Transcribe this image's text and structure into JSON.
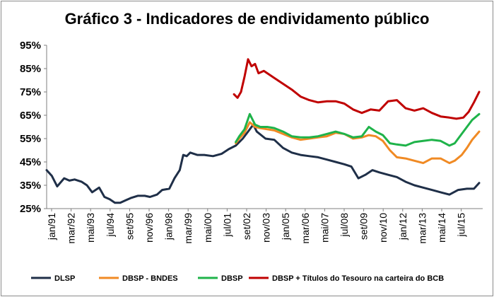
{
  "chart_data": {
    "type": "line",
    "title": "Gráfico 3 - Indicadores de endividamento público",
    "xlabel": "",
    "ylabel": "",
    "ylim": [
      25,
      95
    ],
    "y_ticks": [
      "95%",
      "85%",
      "75%",
      "65%",
      "55%",
      "45%",
      "35%",
      "25%"
    ],
    "x_ticks": [
      "jan/91",
      "mar/92",
      "mai/93",
      "jul/94",
      "set/95",
      "nov/96",
      "jan/98",
      "mar/99",
      "mai/00",
      "jul/01",
      "set/02",
      "nov/03",
      "jan/05",
      "mar/06",
      "mai/07",
      "jul/08",
      "set/09",
      "nov/10",
      "jan/12",
      "mar/13",
      "mai/14",
      "jul/15"
    ],
    "series": [
      {
        "name": "DLSP",
        "color": "#1f2f48",
        "x": [
          1991.0,
          1991.3,
          1991.6,
          1992.0,
          1992.3,
          1992.6,
          1993.0,
          1993.3,
          1993.6,
          1994.0,
          1994.3,
          1994.6,
          1994.9,
          1995.2,
          1995.5,
          1995.8,
          1996.2,
          1996.6,
          1996.9,
          1997.3,
          1997.6,
          1998.0,
          1998.3,
          1998.6,
          1998.8,
          1999.0,
          1999.2,
          1999.6,
          2000.0,
          2000.5,
          2001.0,
          2001.4,
          2001.8,
          2002.2,
          2002.5,
          2002.8,
          2003.0,
          2003.5,
          2004.0,
          2004.5,
          2005.0,
          2005.5,
          2006.0,
          2006.5,
          2007.0,
          2007.5,
          2008.0,
          2008.4,
          2008.8,
          2009.2,
          2009.6,
          2010.0,
          2010.5,
          2011.0,
          2011.5,
          2012.0,
          2012.5,
          2013.0,
          2013.5,
          2014.0,
          2014.5,
          2015.0,
          2015.4,
          2015.7
        ],
        "values": [
          41.5,
          39.0,
          34.5,
          38.0,
          37.0,
          37.5,
          36.5,
          35.0,
          32.0,
          34.0,
          30.0,
          29.0,
          27.5,
          27.5,
          28.5,
          29.5,
          30.5,
          30.5,
          30.0,
          31.0,
          33.0,
          33.5,
          38.0,
          41.5,
          48.0,
          47.5,
          49.0,
          48.0,
          48.0,
          47.5,
          48.5,
          50.5,
          52.0,
          55.0,
          58.0,
          61.0,
          58.0,
          55.0,
          54.5,
          51.0,
          49.0,
          48.0,
          47.5,
          47.0,
          46.0,
          45.0,
          44.0,
          43.0,
          38.0,
          39.5,
          41.5,
          40.5,
          39.5,
          38.5,
          36.5,
          35.0,
          34.0,
          33.0,
          32.0,
          31.0,
          33.0,
          33.5,
          33.5,
          36.0
        ]
      },
      {
        "name": "DBSP - BNDES",
        "color": "#f08a24",
        "x": [
          2001.8,
          2002.0,
          2002.3,
          2002.6,
          2002.9,
          2003.2,
          2003.6,
          2004.0,
          2004.5,
          2005.0,
          2005.5,
          2006.0,
          2006.5,
          2007.0,
          2007.5,
          2008.0,
          2008.5,
          2009.0,
          2009.4,
          2009.8,
          2010.2,
          2010.6,
          2011.0,
          2011.5,
          2012.0,
          2012.5,
          2013.0,
          2013.5,
          2014.0,
          2014.3,
          2014.7,
          2015.0,
          2015.3,
          2015.7
        ],
        "values": [
          53.0,
          55.0,
          57.5,
          62.0,
          60.0,
          59.5,
          59.0,
          58.5,
          57.0,
          55.5,
          54.5,
          55.0,
          55.5,
          56.0,
          57.5,
          57.0,
          55.0,
          55.5,
          56.5,
          56.0,
          54.0,
          50.0,
          47.0,
          46.5,
          45.5,
          44.5,
          46.5,
          46.5,
          44.5,
          45.5,
          48.0,
          51.0,
          54.5,
          58.0
        ]
      },
      {
        "name": "DBSP",
        "color": "#1fb34a",
        "x": [
          2001.8,
          2002.0,
          2002.3,
          2002.6,
          2002.9,
          2003.2,
          2003.6,
          2004.0,
          2004.5,
          2005.0,
          2005.5,
          2006.0,
          2006.5,
          2007.0,
          2007.5,
          2008.0,
          2008.5,
          2009.0,
          2009.4,
          2009.8,
          2010.2,
          2010.6,
          2011.0,
          2011.5,
          2012.0,
          2012.5,
          2013.0,
          2013.5,
          2014.0,
          2014.3,
          2014.7,
          2015.0,
          2015.3,
          2015.7
        ],
        "values": [
          53.5,
          56.0,
          59.0,
          65.5,
          61.0,
          60.0,
          60.0,
          59.5,
          58.0,
          56.0,
          55.5,
          55.5,
          56.0,
          57.0,
          58.0,
          57.0,
          55.5,
          56.0,
          60.0,
          58.0,
          56.5,
          53.0,
          52.5,
          52.0,
          53.5,
          54.0,
          54.5,
          54.0,
          52.0,
          53.0,
          57.0,
          60.0,
          63.0,
          65.5
        ]
      },
      {
        "name": "DBSP + Títulos do Tesouro na carteira do BCB",
        "color": "#c00000",
        "x": [
          2001.7,
          2001.9,
          2002.1,
          2002.3,
          2002.5,
          2002.7,
          2002.9,
          2003.1,
          2003.4,
          2003.7,
          2004.0,
          2004.5,
          2005.0,
          2005.5,
          2006.0,
          2006.5,
          2007.0,
          2007.5,
          2008.0,
          2008.5,
          2009.0,
          2009.5,
          2010.0,
          2010.5,
          2011.0,
          2011.5,
          2012.0,
          2012.5,
          2013.0,
          2013.5,
          2014.0,
          2014.4,
          2014.8,
          2015.1,
          2015.4,
          2015.7
        ],
        "values": [
          74.0,
          72.5,
          75.0,
          81.5,
          89.0,
          86.0,
          87.0,
          83.0,
          84.0,
          82.5,
          81.0,
          78.5,
          76.0,
          73.0,
          71.5,
          70.5,
          71.0,
          71.0,
          70.0,
          67.5,
          66.0,
          67.5,
          67.0,
          71.0,
          71.5,
          68.0,
          67.0,
          68.0,
          66.0,
          64.5,
          64.0,
          63.5,
          64.0,
          66.5,
          70.5,
          75.0
        ]
      }
    ]
  }
}
